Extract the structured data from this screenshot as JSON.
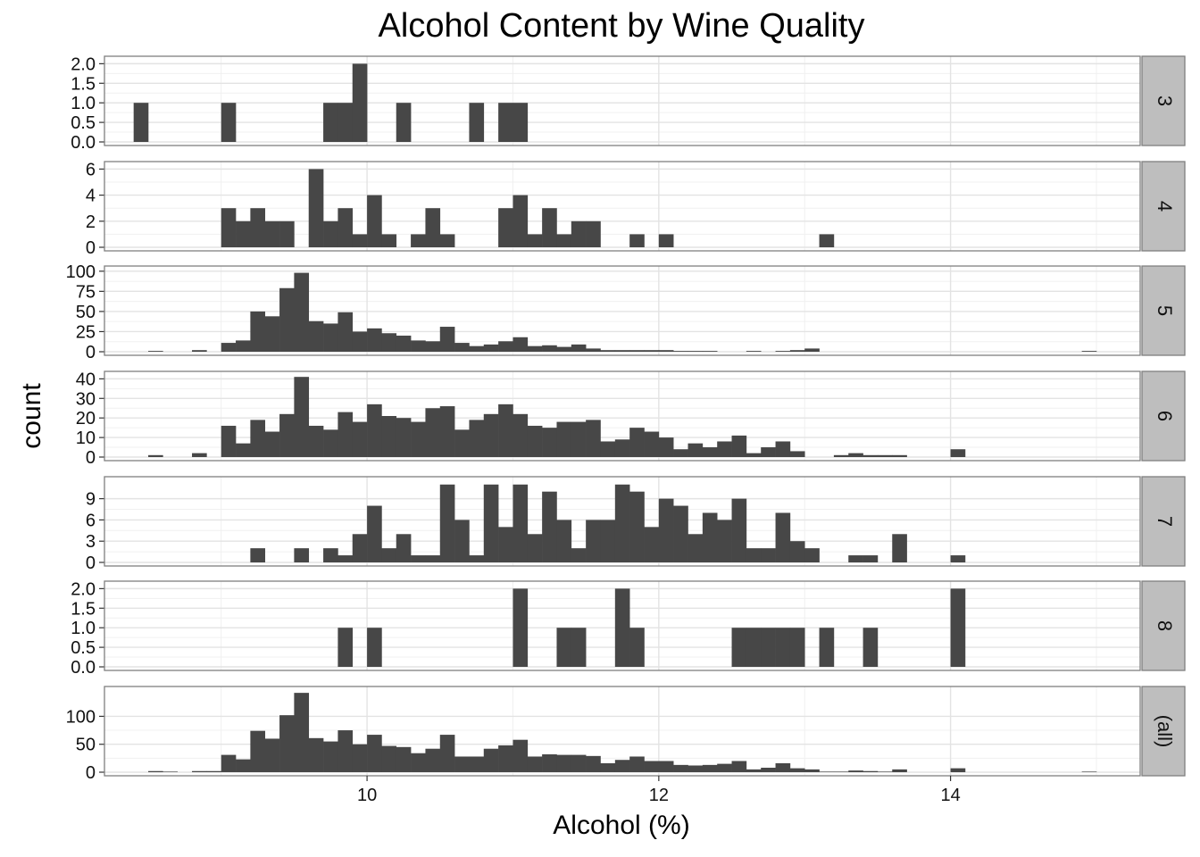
{
  "chart_data": {
    "type": "bar",
    "title": "Alcohol Content by Wine Quality",
    "xlabel": "Alcohol (%)",
    "ylabel": "count",
    "xlim": [
      8.2,
      15.3
    ],
    "x_ticks": [
      10,
      12,
      14
    ],
    "bin_width": 0.1,
    "bar_color": "#474747",
    "grid": true,
    "panels": [
      {
        "label": "3",
        "ylim": [
          0,
          2.1
        ],
        "y_ticks": [
          0,
          0.5,
          1,
          1.5,
          2
        ],
        "y_tick_labels": [
          "0.0",
          "0.5",
          "1.0",
          "1.5",
          "2.0"
        ],
        "bins": [
          [
            8.4,
            1
          ],
          [
            9.0,
            1
          ],
          [
            9.7,
            1
          ],
          [
            9.8,
            1
          ],
          [
            9.9,
            2
          ],
          [
            10.2,
            1
          ],
          [
            10.7,
            1
          ],
          [
            10.9,
            1
          ],
          [
            11.0,
            1
          ]
        ]
      },
      {
        "label": "4",
        "ylim": [
          0,
          6.3
        ],
        "y_ticks": [
          0,
          2,
          4,
          6
        ],
        "y_tick_labels": [
          "0",
          "2",
          "4",
          "6"
        ],
        "bins": [
          [
            9.0,
            3
          ],
          [
            9.1,
            2
          ],
          [
            9.2,
            3
          ],
          [
            9.3,
            2
          ],
          [
            9.4,
            2
          ],
          [
            9.6,
            6
          ],
          [
            9.7,
            2
          ],
          [
            9.8,
            3
          ],
          [
            9.9,
            1
          ],
          [
            10.0,
            4
          ],
          [
            10.1,
            1
          ],
          [
            10.3,
            1
          ],
          [
            10.4,
            3
          ],
          [
            10.5,
            1
          ],
          [
            10.9,
            3
          ],
          [
            11.0,
            4
          ],
          [
            11.1,
            1
          ],
          [
            11.2,
            3
          ],
          [
            11.3,
            1
          ],
          [
            11.4,
            2
          ],
          [
            11.5,
            2
          ],
          [
            11.8,
            1
          ],
          [
            12.0,
            1
          ],
          [
            13.1,
            1
          ]
        ]
      },
      {
        "label": "5",
        "ylim": [
          0,
          102
        ],
        "y_ticks": [
          0,
          25,
          50,
          75,
          100
        ],
        "y_tick_labels": [
          "0",
          "25",
          "50",
          "75",
          "100"
        ],
        "bins": [
          [
            8.5,
            1
          ],
          [
            8.8,
            2
          ],
          [
            9.0,
            11
          ],
          [
            9.1,
            14
          ],
          [
            9.2,
            50
          ],
          [
            9.3,
            44
          ],
          [
            9.4,
            79
          ],
          [
            9.5,
            98
          ],
          [
            9.6,
            38
          ],
          [
            9.7,
            35
          ],
          [
            9.8,
            49
          ],
          [
            9.9,
            25
          ],
          [
            10.0,
            29
          ],
          [
            10.1,
            23
          ],
          [
            10.2,
            20
          ],
          [
            10.3,
            14
          ],
          [
            10.4,
            13
          ],
          [
            10.5,
            31
          ],
          [
            10.6,
            11
          ],
          [
            10.7,
            7
          ],
          [
            10.8,
            9
          ],
          [
            10.9,
            13
          ],
          [
            11.0,
            18
          ],
          [
            11.1,
            7
          ],
          [
            11.2,
            8
          ],
          [
            11.3,
            6
          ],
          [
            11.4,
            9
          ],
          [
            11.5,
            4
          ],
          [
            11.6,
            2
          ],
          [
            11.7,
            2
          ],
          [
            11.8,
            2
          ],
          [
            11.9,
            2
          ],
          [
            12.0,
            2
          ],
          [
            12.1,
            1
          ],
          [
            12.2,
            1
          ],
          [
            12.3,
            1
          ],
          [
            12.6,
            1
          ],
          [
            12.8,
            1
          ],
          [
            12.9,
            2
          ],
          [
            13.0,
            4
          ],
          [
            14.9,
            1
          ]
        ]
      },
      {
        "label": "6",
        "ylim": [
          0,
          42
        ],
        "y_ticks": [
          0,
          10,
          20,
          30,
          40
        ],
        "y_tick_labels": [
          "0",
          "10",
          "20",
          "30",
          "40"
        ],
        "bins": [
          [
            8.5,
            1
          ],
          [
            8.8,
            2
          ],
          [
            9.0,
            16
          ],
          [
            9.1,
            7
          ],
          [
            9.2,
            19
          ],
          [
            9.3,
            13
          ],
          [
            9.4,
            22
          ],
          [
            9.5,
            41
          ],
          [
            9.6,
            16
          ],
          [
            9.7,
            14
          ],
          [
            9.8,
            23
          ],
          [
            9.9,
            18
          ],
          [
            10.0,
            27
          ],
          [
            10.1,
            21
          ],
          [
            10.2,
            20
          ],
          [
            10.3,
            18
          ],
          [
            10.4,
            25
          ],
          [
            10.5,
            26
          ],
          [
            10.6,
            14
          ],
          [
            10.7,
            19
          ],
          [
            10.8,
            22
          ],
          [
            10.9,
            27
          ],
          [
            11.0,
            22
          ],
          [
            11.1,
            16
          ],
          [
            11.2,
            15
          ],
          [
            11.3,
            18
          ],
          [
            11.4,
            18
          ],
          [
            11.5,
            19
          ],
          [
            11.6,
            8
          ],
          [
            11.7,
            9
          ],
          [
            11.8,
            15
          ],
          [
            11.9,
            13
          ],
          [
            12.0,
            10
          ],
          [
            12.1,
            4
          ],
          [
            12.2,
            7
          ],
          [
            12.3,
            5
          ],
          [
            12.4,
            8
          ],
          [
            12.5,
            11
          ],
          [
            12.6,
            2
          ],
          [
            12.7,
            5
          ],
          [
            12.8,
            8
          ],
          [
            12.9,
            3
          ],
          [
            13.2,
            1
          ],
          [
            13.3,
            2
          ],
          [
            13.4,
            1
          ],
          [
            13.5,
            1
          ],
          [
            13.6,
            1
          ],
          [
            14.0,
            4
          ]
        ]
      },
      {
        "label": "7",
        "ylim": [
          0,
          11.6
        ],
        "y_ticks": [
          0,
          3,
          6,
          9
        ],
        "y_tick_labels": [
          "0",
          "3",
          "6",
          "9"
        ],
        "bins": [
          [
            9.2,
            2
          ],
          [
            9.5,
            2
          ],
          [
            9.7,
            2
          ],
          [
            9.8,
            1
          ],
          [
            9.9,
            4
          ],
          [
            10.0,
            8
          ],
          [
            10.1,
            2
          ],
          [
            10.2,
            4
          ],
          [
            10.3,
            1
          ],
          [
            10.4,
            1
          ],
          [
            10.5,
            11
          ],
          [
            10.6,
            6
          ],
          [
            10.7,
            1
          ],
          [
            10.8,
            11
          ],
          [
            10.9,
            5
          ],
          [
            11.0,
            11
          ],
          [
            11.1,
            4
          ],
          [
            11.2,
            10
          ],
          [
            11.3,
            6
          ],
          [
            11.4,
            2
          ],
          [
            11.5,
            6
          ],
          [
            11.6,
            6
          ],
          [
            11.7,
            11
          ],
          [
            11.8,
            10
          ],
          [
            11.9,
            5
          ],
          [
            12.0,
            9
          ],
          [
            12.1,
            8
          ],
          [
            12.2,
            4
          ],
          [
            12.3,
            7
          ],
          [
            12.4,
            6
          ],
          [
            12.5,
            9
          ],
          [
            12.6,
            2
          ],
          [
            12.7,
            2
          ],
          [
            12.8,
            7
          ],
          [
            12.9,
            3
          ],
          [
            13.0,
            2
          ],
          [
            13.3,
            1
          ],
          [
            13.4,
            1
          ],
          [
            13.6,
            4
          ],
          [
            14.0,
            1
          ]
        ]
      },
      {
        "label": "8",
        "ylim": [
          0,
          2.1
        ],
        "y_ticks": [
          0,
          0.5,
          1,
          1.5,
          2
        ],
        "y_tick_labels": [
          "0.0",
          "0.5",
          "1.0",
          "1.5",
          "2.0"
        ],
        "bins": [
          [
            9.8,
            1
          ],
          [
            10.0,
            1
          ],
          [
            11.0,
            2
          ],
          [
            11.3,
            1
          ],
          [
            11.4,
            1
          ],
          [
            11.7,
            2
          ],
          [
            11.8,
            1
          ],
          [
            12.5,
            1
          ],
          [
            12.6,
            1
          ],
          [
            12.7,
            1
          ],
          [
            12.8,
            1
          ],
          [
            12.9,
            1
          ],
          [
            13.1,
            1
          ],
          [
            13.4,
            1
          ],
          [
            14.0,
            2
          ]
        ]
      },
      {
        "label": "(all)",
        "ylim": [
          0,
          147
        ],
        "y_ticks": [
          0,
          50,
          100
        ],
        "y_tick_labels": [
          "0",
          "50",
          "100"
        ],
        "bins": [
          [
            8.5,
            2
          ],
          [
            8.6,
            1
          ],
          [
            8.8,
            2
          ],
          [
            8.9,
            2
          ],
          [
            9.0,
            31
          ],
          [
            9.1,
            23
          ],
          [
            9.2,
            74
          ],
          [
            9.3,
            60
          ],
          [
            9.4,
            102
          ],
          [
            9.5,
            142
          ],
          [
            9.6,
            61
          ],
          [
            9.7,
            55
          ],
          [
            9.8,
            75
          ],
          [
            9.9,
            50
          ],
          [
            10.0,
            67
          ],
          [
            10.1,
            47
          ],
          [
            10.2,
            45
          ],
          [
            10.3,
            34
          ],
          [
            10.4,
            42
          ],
          [
            10.5,
            67
          ],
          [
            10.6,
            28
          ],
          [
            10.7,
            28
          ],
          [
            10.8,
            42
          ],
          [
            10.9,
            48
          ],
          [
            11.0,
            58
          ],
          [
            11.1,
            28
          ],
          [
            11.2,
            32
          ],
          [
            11.3,
            31
          ],
          [
            11.4,
            31
          ],
          [
            11.5,
            29
          ],
          [
            11.6,
            16
          ],
          [
            11.7,
            22
          ],
          [
            11.8,
            28
          ],
          [
            11.9,
            20
          ],
          [
            12.0,
            20
          ],
          [
            12.1,
            13
          ],
          [
            12.2,
            12
          ],
          [
            12.3,
            13
          ],
          [
            12.4,
            15
          ],
          [
            12.5,
            20
          ],
          [
            12.6,
            5
          ],
          [
            12.7,
            8
          ],
          [
            12.8,
            16
          ],
          [
            12.9,
            7
          ],
          [
            13.0,
            5
          ],
          [
            13.1,
            1
          ],
          [
            13.2,
            1
          ],
          [
            13.3,
            3
          ],
          [
            13.4,
            2
          ],
          [
            13.5,
            1
          ],
          [
            13.6,
            5
          ],
          [
            14.0,
            7
          ],
          [
            14.9,
            1
          ]
        ]
      }
    ]
  }
}
